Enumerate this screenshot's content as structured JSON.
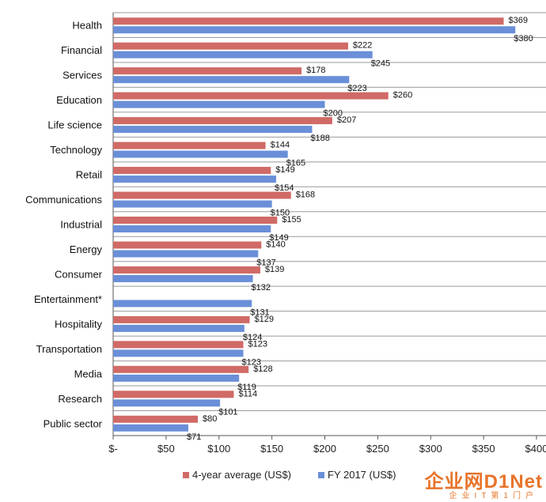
{
  "chart_data": {
    "type": "bar",
    "orientation": "horizontal",
    "categories": [
      "Health",
      "Financial",
      "Services",
      "Education",
      "Life science",
      "Technology",
      "Retail",
      "Communications",
      "Industrial",
      "Energy",
      "Consumer",
      "Entertainment*",
      "Hospitality",
      "Transportation",
      "Media",
      "Research",
      "Public sector"
    ],
    "series": [
      {
        "name": "4-year average (US$)",
        "color": "#d06a66",
        "values": [
          369,
          222,
          178,
          260,
          207,
          144,
          149,
          168,
          155,
          140,
          139,
          null,
          129,
          123,
          128,
          114,
          80
        ],
        "labels": [
          "$369",
          "$222",
          "$178",
          "$260",
          "$207",
          "$144",
          "$149",
          "$168",
          "$155",
          "$140",
          "$139",
          "",
          "$129",
          "$123",
          "$128",
          "$114",
          "$80"
        ]
      },
      {
        "name": "FY 2017 (US$)",
        "color": "#6a8fd8",
        "values": [
          380,
          245,
          223,
          200,
          188,
          165,
          154,
          150,
          149,
          137,
          132,
          131,
          124,
          123,
          119,
          101,
          71
        ],
        "labels": [
          "$380",
          "$245",
          "$223",
          "$200",
          "$188",
          "$165",
          "$154",
          "$150",
          "$149",
          "$137",
          "$132",
          "$131",
          "$124",
          "$123",
          "$119",
          "$101",
          "$71"
        ]
      }
    ],
    "xlim": [
      0,
      400
    ],
    "xticks": [
      "$-",
      "$50",
      "$100",
      "$150",
      "$200",
      "$250",
      "$300",
      "$350",
      "$400"
    ],
    "grid": "horizontal separators",
    "legend": "bottom"
  },
  "watermark": {
    "main": "企业网D1Net",
    "sub": "企业IT第1门户"
  }
}
